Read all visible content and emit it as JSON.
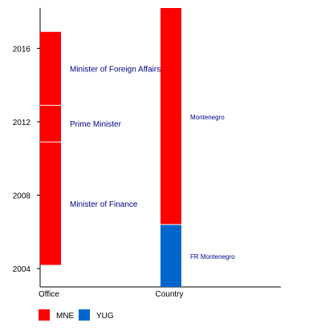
{
  "chart_data": {
    "type": "bar",
    "subtype": "timeline",
    "y_axis": {
      "range": [
        2003.0,
        2018.2
      ],
      "ticks": [
        2004,
        2008,
        2012,
        2016
      ],
      "tick_labels": [
        "2004",
        "2008",
        "2012",
        "2016"
      ]
    },
    "categories": [
      "Office",
      "Country"
    ],
    "series": [
      {
        "category": "Office",
        "segments": [
          {
            "label": "Minister of Finance",
            "start": 2004.2,
            "end": 2010.9,
            "color": "#ff0000"
          },
          {
            "label": "Prime Minister",
            "start": 2010.9,
            "end": 2012.9,
            "color": "#ff0000"
          },
          {
            "label": "Minister of Foreign Affairs",
            "start": 2012.9,
            "end": 2016.9,
            "color": "#ff0000"
          }
        ]
      },
      {
        "category": "Country",
        "segments": [
          {
            "label": "FR Montenegro",
            "start": 2003.0,
            "end": 2006.4,
            "color": "#0066cc"
          },
          {
            "label": "Montenegro",
            "start": 2006.4,
            "end": 2018.2,
            "color": "#ff0000"
          }
        ]
      }
    ],
    "legend": {
      "placement": "bottom-left",
      "items": [
        {
          "label": "MNE",
          "color": "#ff0000"
        },
        {
          "label": "YUG",
          "color": "#0066cc"
        }
      ]
    },
    "label_color": "#00008b",
    "grid": false
  }
}
